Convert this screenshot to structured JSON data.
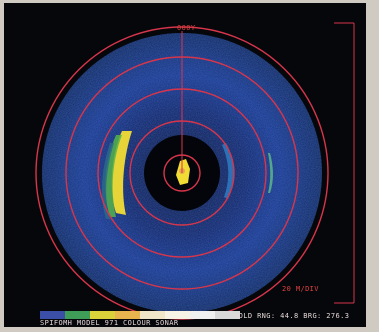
{
  "display": {
    "bearing_marker": "000Y",
    "scale": "20 M/DIV",
    "model_label": "SPIFOMH MODEL 971 COLOUR SONAR",
    "readout": "HOLD RNG: 44.8  BRG: 276.3"
  },
  "colors": {
    "rings": "#d8354b",
    "background": "#05070b",
    "sonar_blue": "#1f3f98",
    "echo_yellow": "#f1dc35",
    "echo_green": "#54b34a"
  },
  "palette": [
    "#3c4fa8",
    "#3e9e57",
    "#d9d23a",
    "#e7b44d",
    "#f0e7c9",
    "#f7f2e6",
    "#f0f0f0",
    "#d9d9d9"
  ]
}
